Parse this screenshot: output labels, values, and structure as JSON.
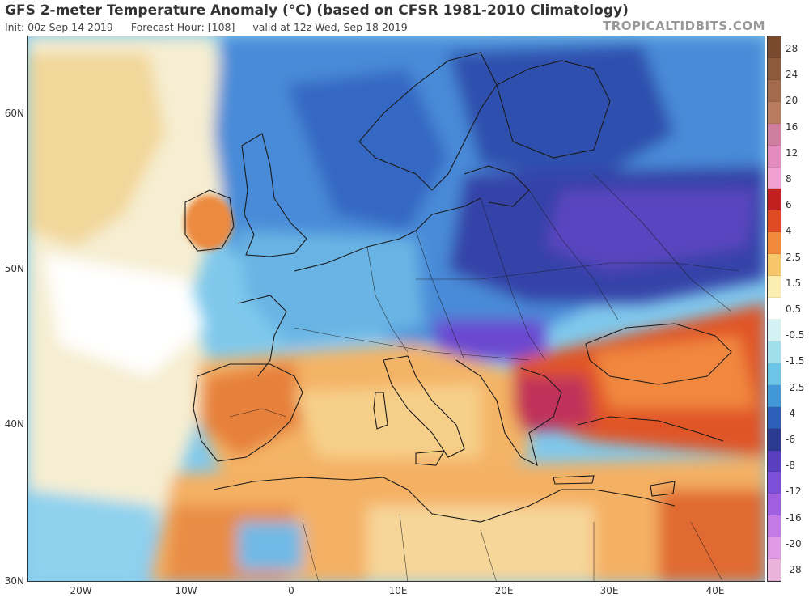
{
  "header": {
    "title": "GFS 2-meter Temperature Anomaly (°C) (based on CFSR 1981-2010 Climatology)",
    "init": "Init: 00z Sep 14 2019",
    "forecast_hour": "Forecast Hour: [108]",
    "valid": "valid at 12z Wed, Sep 18 2019",
    "credit": "TROPICALTIDBITS.COM"
  },
  "map": {
    "lat_labels": [
      "60N",
      "50N",
      "40N",
      "30N"
    ],
    "lon_labels": [
      "20W",
      "10W",
      "0",
      "10E",
      "20E",
      "30E",
      "40E"
    ]
  },
  "colorbar": {
    "labels": [
      "28",
      "24",
      "20",
      "16",
      "12",
      "8",
      "6",
      "4",
      "2.5",
      "1.5",
      "0.5",
      "-0.5",
      "-1.5",
      "-2.5",
      "-4",
      "-6",
      "-8",
      "-12",
      "-16",
      "-20",
      "-28"
    ],
    "colors": [
      "#7a4a2f",
      "#8e5a3c",
      "#a36b4c",
      "#b97b5e",
      "#cf7ea0",
      "#e48cc0",
      "#f2a0d4",
      "#c21f1f",
      "#e04a22",
      "#f08a3a",
      "#f7c66b",
      "#fbeeb0",
      "#ffffff",
      "#d4f2f4",
      "#9fe0ec",
      "#6cc5e6",
      "#4197d8",
      "#2c5fb8",
      "#2c3a92",
      "#5a3fc0",
      "#7d4ed8",
      "#a05ee0",
      "#c37ae6",
      "#e09ae6",
      "#eab4da"
    ]
  }
}
